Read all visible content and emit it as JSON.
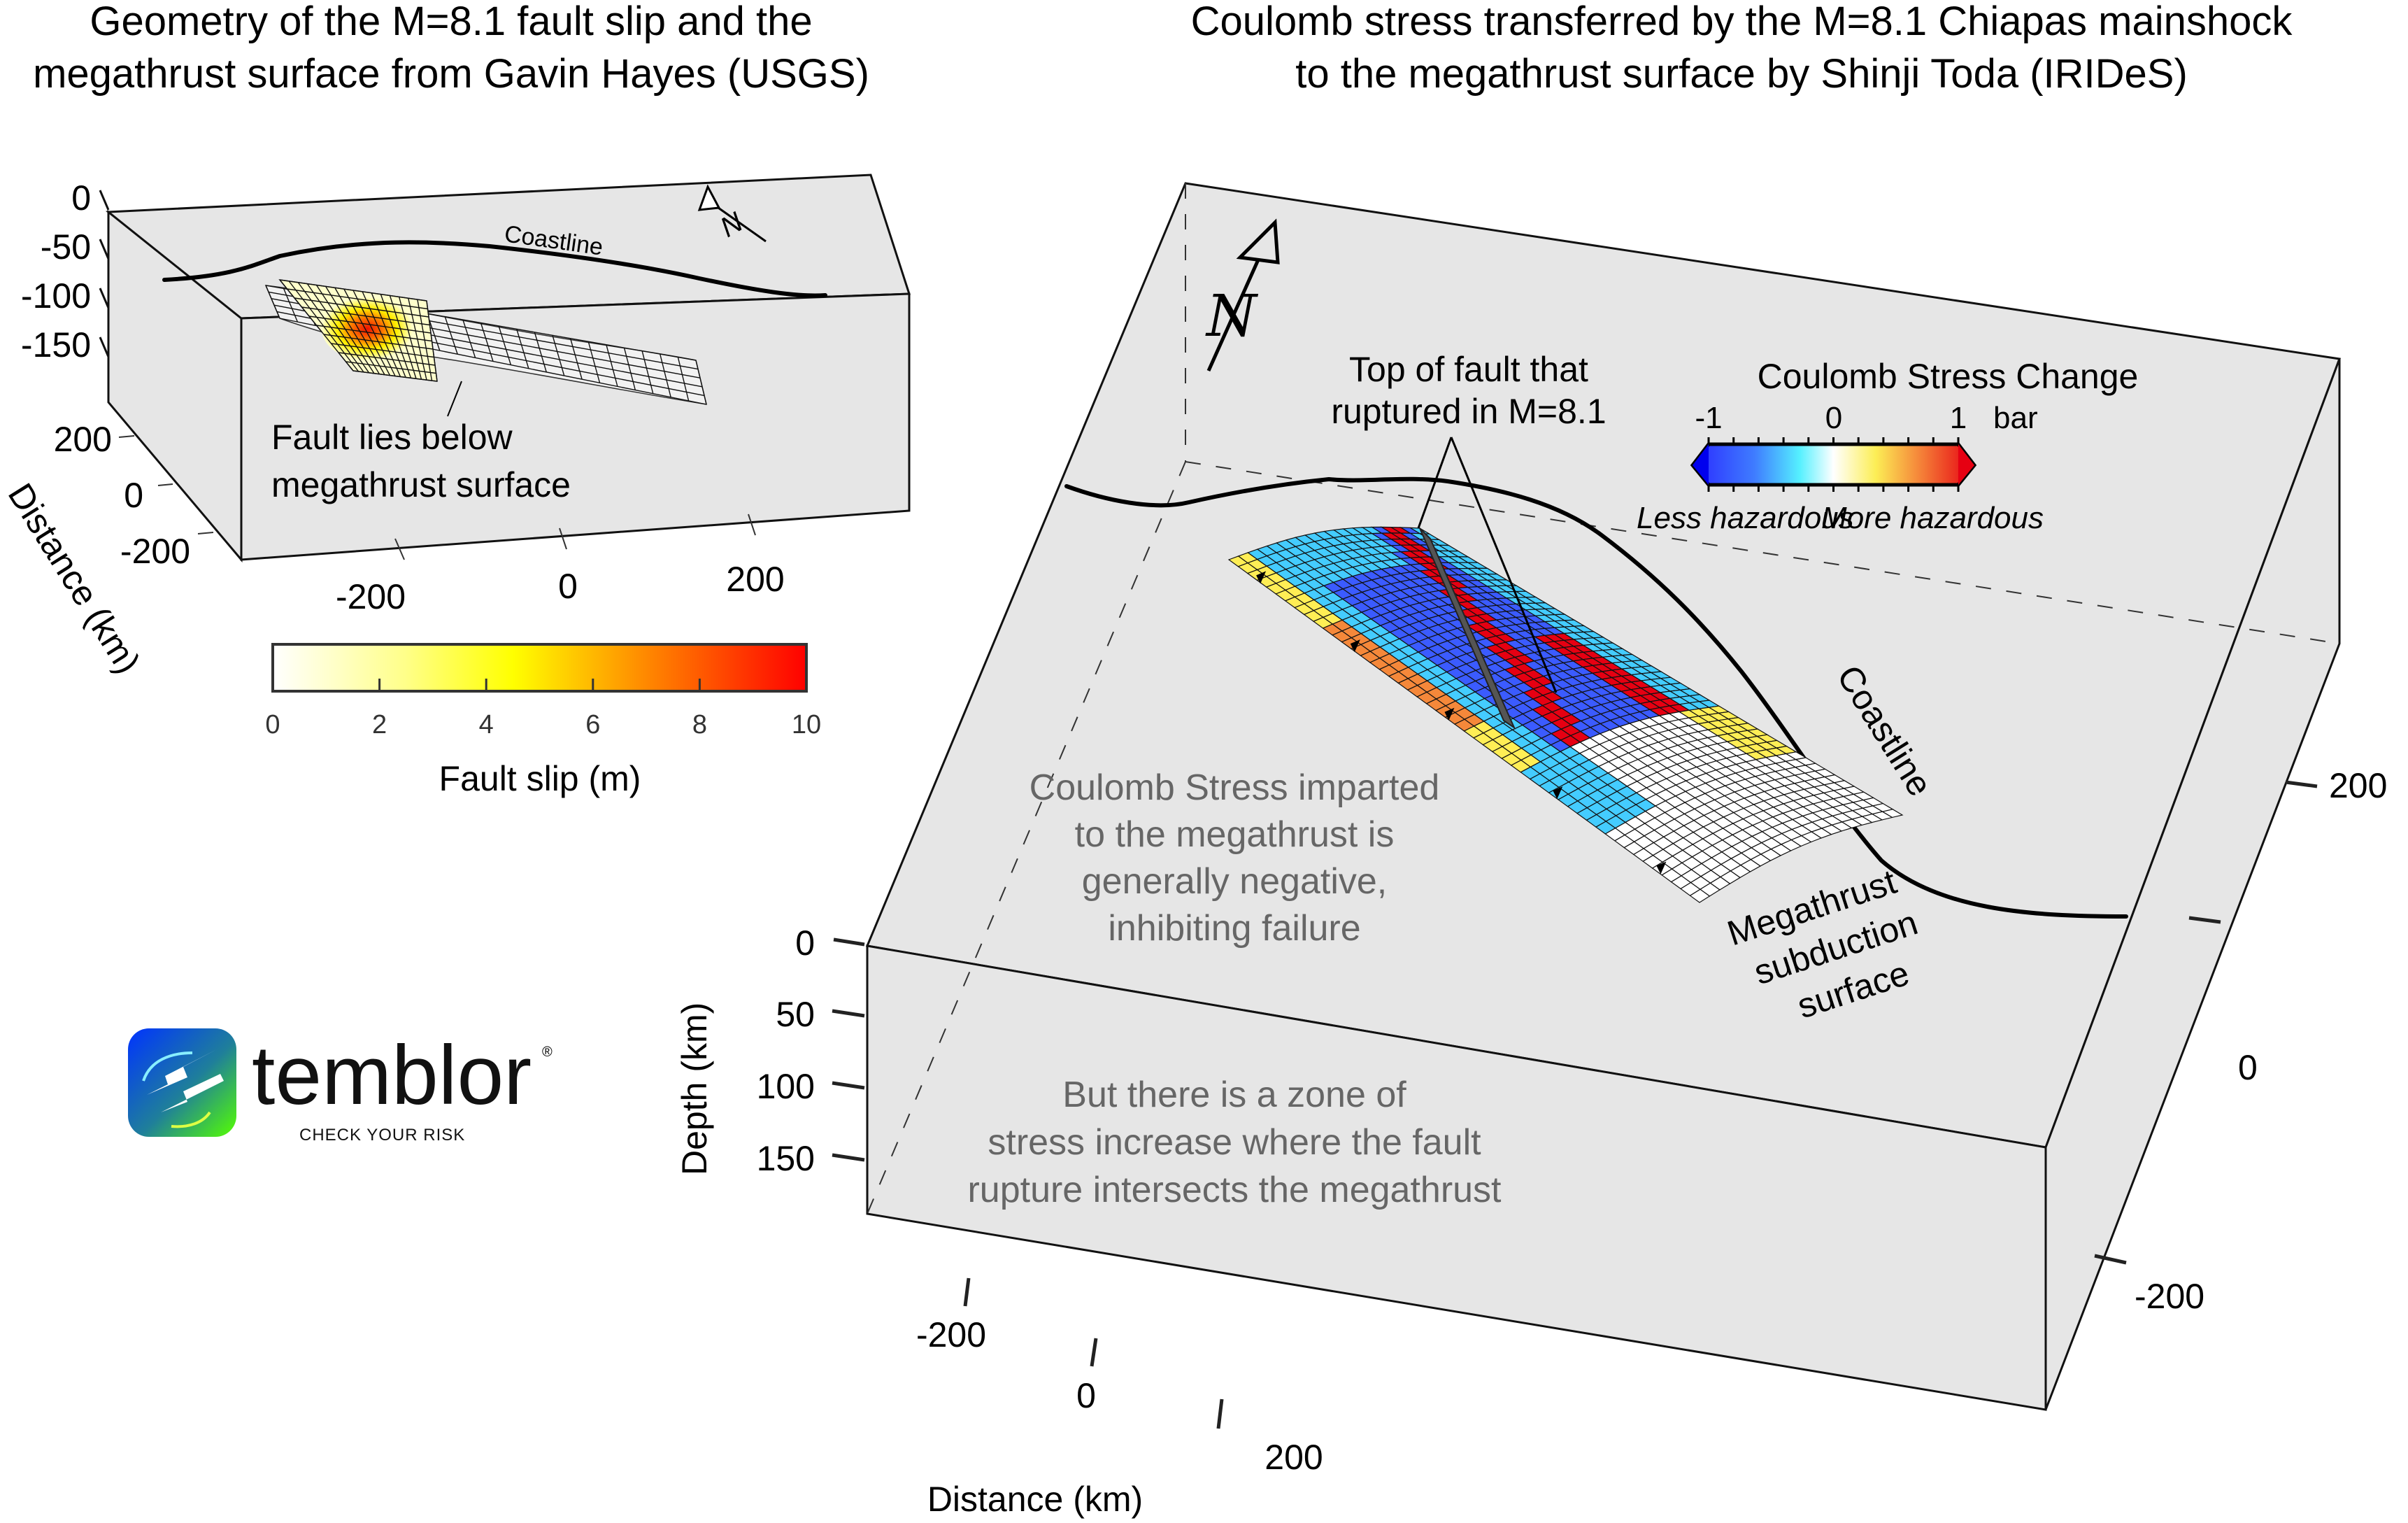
{
  "left_panel": {
    "title_line1": "Geometry of the M=8.1 fault slip and the",
    "title_line2": "megathrust surface from Gavin Hayes (USGS)",
    "depth_ticks": [
      "0",
      "-50",
      "-100",
      "-150"
    ],
    "y_ticks": [
      "200",
      "0",
      "-200"
    ],
    "y_axis_label": "Distance (km)",
    "x_ticks": [
      "-200",
      "0",
      "200"
    ],
    "coastline_label": "Coastline",
    "north_label": "N",
    "annotation_line1": "Fault lies below",
    "annotation_line2": "megathrust surface",
    "colorbar": {
      "label": "Fault slip (m)",
      "ticks": [
        "0",
        "2",
        "4",
        "6",
        "8",
        "10"
      ],
      "colors": [
        "#ffffff",
        "#ffff66",
        "#ffff00",
        "#ff9900",
        "#ff0000"
      ]
    }
  },
  "right_panel": {
    "title_line1": "Coulomb stress transferred by the M=8.1 Chiapas mainshock",
    "title_line2": "to the megathrust surface by Shinji Toda (IRIDeS)",
    "north_label": "N",
    "fault_top_label_line1": "Top of fault that",
    "fault_top_label_line2": "ruptured in M=8.1",
    "colorbar": {
      "title": "Coulomb Stress Change",
      "ticks": [
        "-1",
        "0",
        "1"
      ],
      "unit": "bar",
      "less_label": "Less hazardous",
      "more_label": "More hazardous",
      "colors": [
        "#0000ee",
        "#3b5bff",
        "#44ccff",
        "#ffffff",
        "#ffee55",
        "#f5883a",
        "#e60012"
      ]
    },
    "coastline_label": "Coastline",
    "megathrust_label_line1": "Megathrust",
    "megathrust_label_line2": "subduction",
    "megathrust_label_line3": "surface",
    "note1": [
      "Coulomb Stress imparted",
      "to the megathrust is",
      "generally negative,",
      "inhibiting failure"
    ],
    "note2": [
      "But there is a zone of",
      "stress increase where the fault",
      "rupture intersects the megathrust"
    ],
    "depth_axis_label": "Depth (km)",
    "depth_ticks": [
      "0",
      "50",
      "100",
      "150"
    ],
    "x_axis_label": "Distance (km)",
    "x_ticks": [
      "-200",
      "0",
      "200"
    ],
    "y_ticks": [
      "200",
      "0",
      "-200"
    ]
  },
  "logo": {
    "name": "temblor",
    "registered": "®",
    "tagline": "CHECK YOUR RISK"
  }
}
